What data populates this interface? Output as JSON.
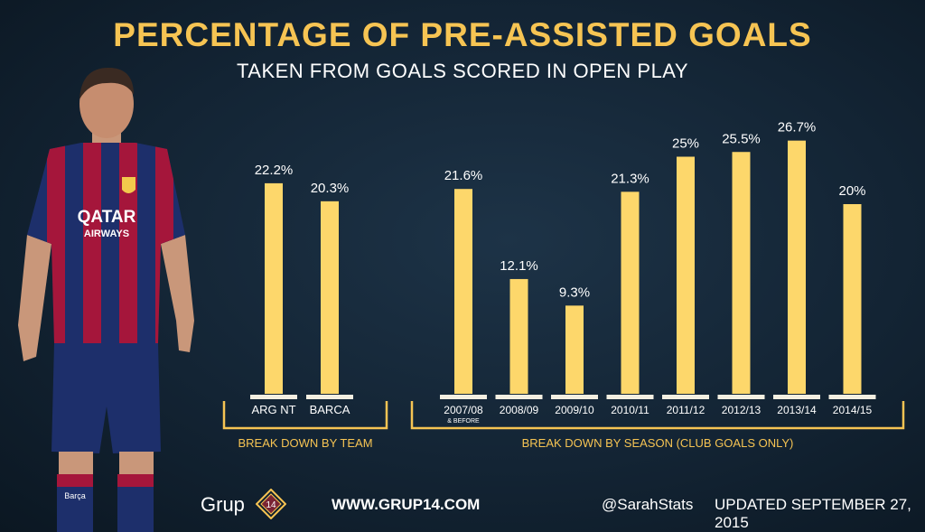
{
  "header": {
    "title": "PERCENTAGE OF PRE-ASSISTED GOALS",
    "subtitle": "TAKEN FROM GOALS SCORED IN OPEN PLAY"
  },
  "chart_data": {
    "type": "bar",
    "value_suffix": "%",
    "ylim": [
      0,
      30
    ],
    "groups": [
      {
        "label": "BREAK DOWN BY TEAM",
        "bars": [
          {
            "category": "ARG NT",
            "value": 22.2,
            "value_label": "22.2%"
          },
          {
            "category": "BARCA",
            "value": 20.3,
            "value_label": "20.3%"
          }
        ]
      },
      {
        "label": "BREAK DOWN BY SEASON (CLUB GOALS ONLY)",
        "bars": [
          {
            "category": "2007/08",
            "sub_label": "& BEFORE",
            "value": 21.6,
            "value_label": "21.6%"
          },
          {
            "category": "2008/09",
            "value": 12.1,
            "value_label": "12.1%"
          },
          {
            "category": "2009/10",
            "value": 9.3,
            "value_label": "9.3%"
          },
          {
            "category": "2010/11",
            "value": 21.3,
            "value_label": "21.3%"
          },
          {
            "category": "2011/12",
            "value": 25,
            "value_label": "25%"
          },
          {
            "category": "2012/13",
            "value": 25.5,
            "value_label": "25.5%"
          },
          {
            "category": "2013/14",
            "value": 26.7,
            "value_label": "26.7%"
          },
          {
            "category": "2014/15",
            "value": 20,
            "value_label": "20%"
          }
        ]
      }
    ],
    "colors": {
      "bar": "#fdd76b",
      "accent": "#f6c453",
      "label_bg": "#f4efe1"
    }
  },
  "player": {
    "shirt_text_1": "QATAR",
    "shirt_text_2": "AIRWAYS",
    "sock_text": "Barça"
  },
  "footer": {
    "brand": "Grup",
    "logo_number": "14",
    "website": "WWW.GRUP14.COM",
    "handle": "@SarahStats",
    "updated": "UPDATED SEPTEMBER 27, 2015"
  }
}
